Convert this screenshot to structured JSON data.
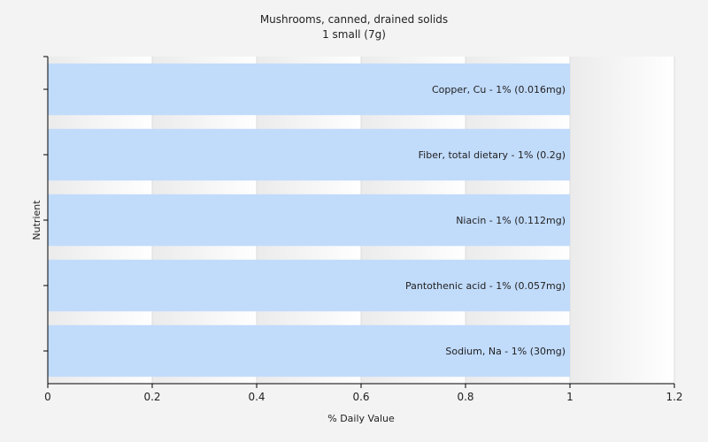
{
  "chart_data": {
    "type": "bar",
    "orientation": "horizontal",
    "title": "Mushrooms, canned, drained solids",
    "subtitle": "1 small (7g)",
    "xlabel": "% Daily Value",
    "ylabel": "Nutrient",
    "xlim": [
      0,
      1.2
    ],
    "xticks": [
      0,
      0.2,
      0.4,
      0.6,
      0.8,
      1,
      1.2
    ],
    "xtick_labels": [
      "0",
      "0.2",
      "0.4",
      "0.6",
      "0.8",
      "1",
      "1.2"
    ],
    "grid": true,
    "bar_color": "#c1dbfb",
    "categories": [
      "Copper, Cu",
      "Fiber, total dietary",
      "Niacin",
      "Pantothenic acid",
      "Sodium, Na"
    ],
    "values": [
      1,
      1,
      1,
      1,
      1
    ],
    "bar_labels": [
      "Copper, Cu - 1% (0.016mg)",
      "Fiber, total dietary - 1% (0.2g)",
      "Niacin - 1% (0.112mg)",
      "Pantothenic acid - 1% (0.057mg)",
      "Sodium, Na - 1% (30mg)"
    ]
  }
}
